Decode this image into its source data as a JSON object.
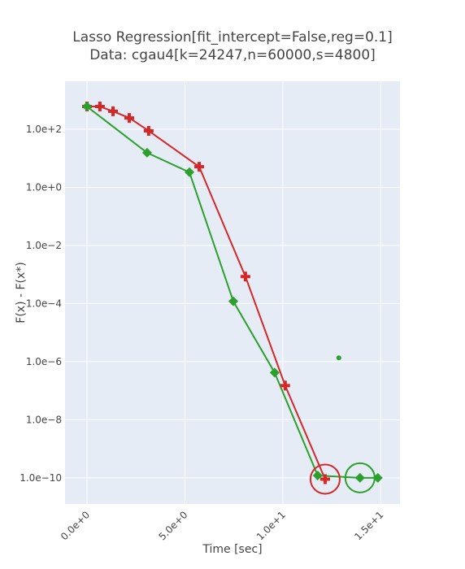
{
  "chart_data": {
    "type": "line",
    "title": "Lasso Regression[fit_intercept=False,reg=0.1]",
    "subtitle": "Data: cgau4[k=24247,n=60000,s=4800]",
    "xlabel": "Time [sec]",
    "ylabel": "F(x) - F(x*)",
    "log_y": true,
    "grid": true,
    "background": "#e5ecf6",
    "xlim": [
      -1.12,
      15.98
    ],
    "xticks": [
      {
        "value": 0,
        "label": "0.0e+0"
      },
      {
        "value": 5,
        "label": "5.0e+0"
      },
      {
        "value": 10,
        "label": "1.0e+1"
      },
      {
        "value": 15,
        "label": "1.5e+1"
      }
    ],
    "ylim": [
      1.26e-11,
      4470
    ],
    "yticks": [
      {
        "value": 100,
        "label": "1.0e+2"
      },
      {
        "value": 1,
        "label": "1.0e+0"
      },
      {
        "value": 0.01,
        "label": "1.0e−2"
      },
      {
        "value": 0.0001,
        "label": "1.0e−4"
      },
      {
        "value": 1e-06,
        "label": "1.0e−6"
      },
      {
        "value": 1e-08,
        "label": "1.0e−8"
      },
      {
        "value": 1e-10,
        "label": "1.0e−10"
      }
    ],
    "series": [
      {
        "color": "#d62728",
        "marker": "cross",
        "x": [
          0,
          0.66,
          1.33,
          2.16,
          3.15,
          5.73,
          8.09,
          10.12,
          12.16
        ],
        "values": [
          605,
          605,
          414,
          245,
          88,
          5.1,
          0.00085,
          1.5e-07,
          9e-11
        ]
      },
      {
        "color": "#2ca02c",
        "marker": "diamond",
        "x": [
          0,
          3.07,
          5.23,
          7.47,
          9.58,
          11.78,
          13.94,
          14.85
        ],
        "values": [
          605,
          15.5,
          3.3,
          0.00012,
          4.2e-07,
          1.2e-10,
          1e-10,
          1e-10
        ]
      }
    ],
    "highlights": [
      {
        "color": "#d62728",
        "x": 12.16,
        "value": 9e-11
      },
      {
        "color": "#2ca02c",
        "x": 13.94,
        "value": 1e-10
      }
    ],
    "points": [
      {
        "color": "#2ca02c",
        "x": 12.86,
        "value": 1.35e-06
      }
    ]
  }
}
